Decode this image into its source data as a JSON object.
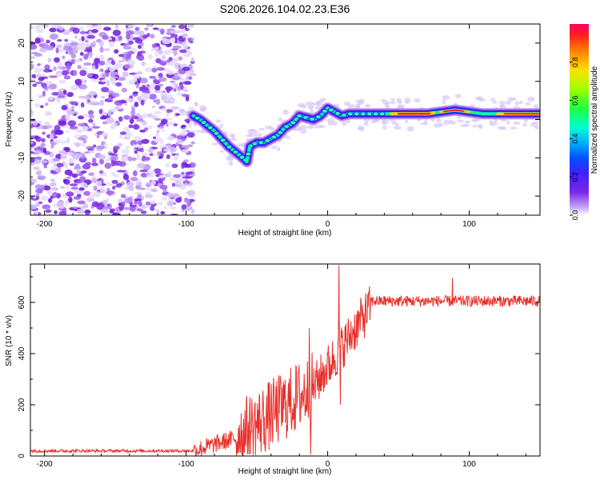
{
  "title": "S206.2026.104.02.23.E36",
  "chart_data": [
    {
      "type": "heatmap",
      "xlabel": "Height of straight line (km)",
      "ylabel": "Frequency (Hz)",
      "xlim": [
        -210,
        150
      ],
      "ylim": [
        -25,
        25
      ],
      "xticks": [
        -200,
        -100,
        0,
        100
      ],
      "yticks": [
        -20,
        -10,
        0,
        10,
        20
      ],
      "noise_region_x": [
        -210,
        -95
      ],
      "ridge": {
        "x": [
          -95,
          -90,
          -85,
          -80,
          -75,
          -70,
          -65,
          -60,
          -57,
          -55,
          -50,
          -45,
          -40,
          -35,
          -30,
          -25,
          -20,
          -15,
          -10,
          -5,
          0,
          5,
          10,
          15,
          20,
          30,
          40,
          50,
          60,
          70,
          80,
          90,
          100,
          110,
          120,
          130,
          140,
          150
        ],
        "y": [
          1,
          0,
          -1.5,
          -3,
          -5,
          -7,
          -8.5,
          -10,
          -11,
          -7,
          -6,
          -6,
          -5,
          -4,
          -2,
          -1,
          1,
          0.5,
          0,
          1,
          3,
          2,
          1,
          1.5,
          1.5,
          1.5,
          1.5,
          1.5,
          1.5,
          1.5,
          2,
          2.5,
          2,
          1.5,
          1.5,
          1.5,
          1.5,
          1.5
        ]
      },
      "colorbar": {
        "label": "Normalized spectral amplitude",
        "ticks": [
          0.0,
          0.2,
          0.4,
          0.6,
          0.8
        ],
        "range": [
          0,
          1
        ],
        "colors": [
          "#ffffff",
          "#c8a8f8",
          "#7a28e8",
          "#4020ff",
          "#0050ff",
          "#00b0ff",
          "#00ffd0",
          "#20ff40",
          "#a0ff00",
          "#ffe000",
          "#ff8000",
          "#ff2020",
          "#ff0060"
        ]
      }
    },
    {
      "type": "line",
      "xlabel": "Height of straight line (km)",
      "ylabel": "SNR (10 * v/v)",
      "xlim": [
        -210,
        150
      ],
      "ylim": [
        0,
        750
      ],
      "xticks": [
        -200,
        -100,
        0,
        100
      ],
      "yticks": [
        0,
        200,
        400,
        600
      ],
      "color": "#e8302a",
      "segments": [
        {
          "x_start": -210,
          "x_end": -95,
          "mean": 20,
          "noise": 6
        },
        {
          "x_start": -95,
          "x_end": -65,
          "mean_start": 20,
          "mean_end": 70,
          "noise": 35
        },
        {
          "x_start": -65,
          "x_end": -10,
          "mean_start": 70,
          "mean_end": 270,
          "noise": 140
        },
        {
          "x_start": -10,
          "x_end": 30,
          "mean_start": 270,
          "mean_end": 580,
          "noise": 90
        },
        {
          "x_start": 30,
          "x_end": 150,
          "mean": 605,
          "noise": 22
        }
      ],
      "peaks": [
        {
          "x": 8,
          "y": 745
        },
        {
          "x": -13,
          "y": 500
        },
        {
          "x": 88,
          "y": 695
        },
        {
          "x": 9,
          "y": 200
        },
        {
          "x": -12,
          "y": 5
        }
      ]
    }
  ]
}
